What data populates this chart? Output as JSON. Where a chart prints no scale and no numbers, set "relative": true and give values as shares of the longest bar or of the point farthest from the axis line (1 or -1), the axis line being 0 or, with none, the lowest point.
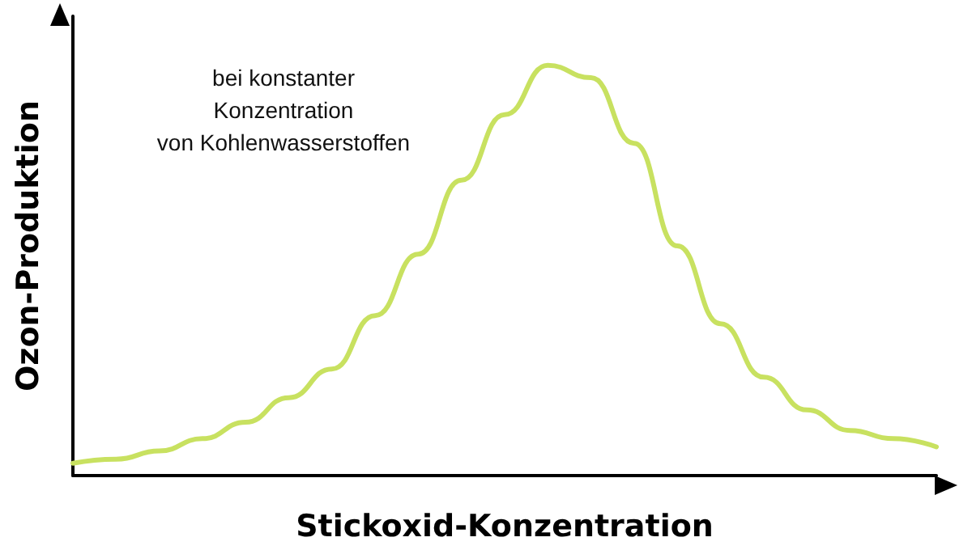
{
  "chart_data": {
    "type": "line",
    "relative": true,
    "xlabel": "Stickoxid-Konzentration",
    "ylabel": "Ozon-Produktion",
    "annotations": [
      "bei konstanter\nKonzentration\nvon Kohlenwasserstoffen"
    ],
    "categories": [
      null,
      null,
      null,
      null,
      null,
      null,
      null,
      null,
      null,
      null,
      null,
      null,
      null,
      null,
      null,
      null,
      null,
      null,
      null,
      null,
      null
    ],
    "series": [
      {
        "color": "#c8e160",
        "values": [
          0.03,
          0.04,
          0.06,
          0.09,
          0.13,
          0.19,
          0.26,
          0.39,
          0.54,
          0.72,
          0.88,
          1.0,
          0.97,
          0.81,
          0.56,
          0.37,
          0.24,
          0.16,
          0.11,
          0.09,
          0.07
        ]
      }
    ],
    "marker": "none",
    "line_style": "solid",
    "grid": false
  }
}
